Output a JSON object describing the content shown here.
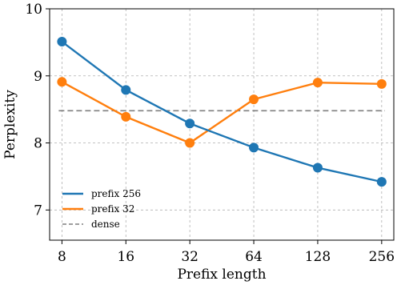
{
  "chart_data": {
    "type": "line",
    "xlabel": "Prefix length",
    "ylabel": "Perplexity",
    "x_scale": "log2",
    "x": [
      8,
      16,
      32,
      64,
      128,
      256
    ],
    "x_tick_labels": [
      "8",
      "16",
      "32",
      "64",
      "128",
      "256"
    ],
    "y_ticks": [
      7,
      8,
      9,
      10
    ],
    "y_tick_labels": [
      "7",
      "8",
      "9",
      "10"
    ],
    "ylim": [
      6.55,
      10
    ],
    "xlim": [
      7,
      292
    ],
    "grid": true,
    "legend_position": "lower-left",
    "series": [
      {
        "name": "prefix 256",
        "color": "#1f77b4",
        "style": "solid-marker",
        "values": [
          9.51,
          8.79,
          8.29,
          7.93,
          7.63,
          7.42
        ]
      },
      {
        "name": "prefix 32",
        "color": "#ff7f0e",
        "style": "solid-marker",
        "values": [
          8.91,
          8.39,
          8.0,
          8.65,
          8.9,
          8.88
        ]
      },
      {
        "name": "dense",
        "color": "#7f7f7f",
        "style": "dashed",
        "values": [
          8.48,
          8.48,
          8.48,
          8.48,
          8.48,
          8.48
        ]
      }
    ]
  }
}
